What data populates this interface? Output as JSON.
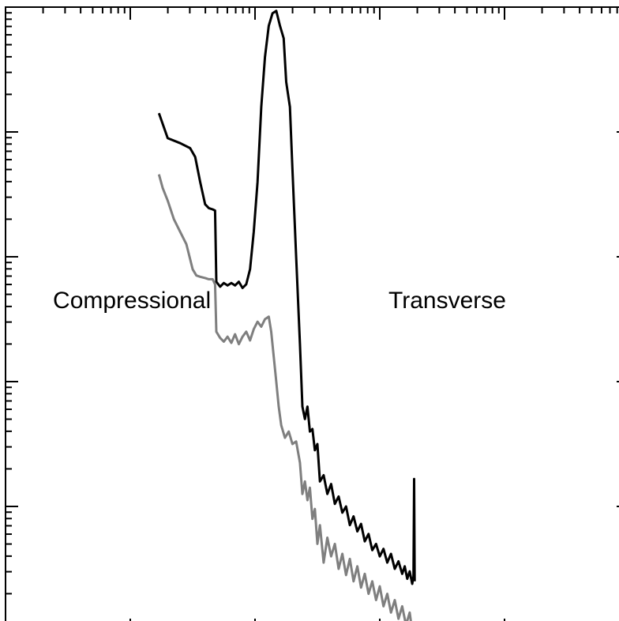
{
  "chart_data": {
    "type": "line",
    "title": "",
    "xlabel": "",
    "ylabel": "",
    "x_scale": "log",
    "y_scale": "log",
    "x_decades": 5,
    "y_decades": 5,
    "grid": false,
    "legend": "none",
    "annotations": [
      {
        "name": "annotation-compressional",
        "text": "Compressional",
        "x": -0.62,
        "y": 2.59
      },
      {
        "name": "annotation-transverse",
        "text": "Transverse",
        "x": 2.07,
        "y": 2.59
      }
    ],
    "series": [
      {
        "key": "transverse",
        "color": "#000000",
        "points": [
          [
            1.23,
            4.15
          ],
          [
            1.3,
            3.95
          ],
          [
            1.4,
            3.91
          ],
          [
            1.48,
            3.87
          ],
          [
            1.52,
            3.8
          ],
          [
            1.56,
            3.6
          ],
          [
            1.6,
            3.42
          ],
          [
            1.63,
            3.39
          ],
          [
            1.66,
            3.38
          ],
          [
            1.68,
            3.37
          ],
          [
            1.69,
            2.8
          ],
          [
            1.72,
            2.76
          ],
          [
            1.75,
            2.79
          ],
          [
            1.78,
            2.77
          ],
          [
            1.81,
            2.79
          ],
          [
            1.84,
            2.77
          ],
          [
            1.87,
            2.8
          ],
          [
            1.9,
            2.75
          ],
          [
            1.93,
            2.78
          ],
          [
            1.96,
            2.9
          ],
          [
            1.99,
            3.2
          ],
          [
            2.02,
            3.6
          ],
          [
            2.05,
            4.2
          ],
          [
            2.08,
            4.6
          ],
          [
            2.11,
            4.85
          ],
          [
            2.14,
            4.95
          ],
          [
            2.17,
            4.97
          ],
          [
            2.2,
            4.85
          ],
          [
            2.23,
            4.75
          ],
          [
            2.25,
            4.4
          ],
          [
            2.28,
            4.2
          ],
          [
            2.3,
            3.7
          ],
          [
            2.33,
            3.0
          ],
          [
            2.36,
            2.3
          ],
          [
            2.38,
            1.8
          ],
          [
            2.4,
            1.7
          ],
          [
            2.42,
            1.8
          ],
          [
            2.44,
            1.6
          ],
          [
            2.46,
            1.62
          ],
          [
            2.48,
            1.45
          ],
          [
            2.5,
            1.5
          ],
          [
            2.52,
            1.2
          ],
          [
            2.55,
            1.25
          ],
          [
            2.58,
            1.1
          ],
          [
            2.61,
            1.18
          ],
          [
            2.64,
            1.02
          ],
          [
            2.67,
            1.08
          ],
          [
            2.7,
            0.95
          ],
          [
            2.73,
            1.0
          ],
          [
            2.76,
            0.85
          ],
          [
            2.79,
            0.92
          ],
          [
            2.82,
            0.8
          ],
          [
            2.85,
            0.86
          ],
          [
            2.88,
            0.72
          ],
          [
            2.91,
            0.78
          ],
          [
            2.94,
            0.65
          ],
          [
            2.97,
            0.7
          ],
          [
            3.0,
            0.6
          ],
          [
            3.03,
            0.66
          ],
          [
            3.06,
            0.55
          ],
          [
            3.09,
            0.62
          ],
          [
            3.12,
            0.5
          ],
          [
            3.15,
            0.56
          ],
          [
            3.18,
            0.46
          ],
          [
            3.2,
            0.52
          ],
          [
            3.22,
            0.42
          ],
          [
            3.24,
            0.48
          ],
          [
            3.26,
            0.38
          ],
          [
            3.27,
            0.44
          ],
          [
            3.275,
            1.22
          ],
          [
            3.28,
            0.4
          ]
        ]
      },
      {
        "key": "compressional",
        "color": "#7f7f7f",
        "points": [
          [
            1.23,
            3.66
          ],
          [
            1.26,
            3.55
          ],
          [
            1.3,
            3.45
          ],
          [
            1.35,
            3.3
          ],
          [
            1.4,
            3.2
          ],
          [
            1.45,
            3.1
          ],
          [
            1.5,
            2.9
          ],
          [
            1.53,
            2.85
          ],
          [
            1.56,
            2.84
          ],
          [
            1.6,
            2.83
          ],
          [
            1.63,
            2.82
          ],
          [
            1.66,
            2.82
          ],
          [
            1.68,
            2.78
          ],
          [
            1.69,
            2.4
          ],
          [
            1.72,
            2.35
          ],
          [
            1.75,
            2.32
          ],
          [
            1.78,
            2.36
          ],
          [
            1.81,
            2.31
          ],
          [
            1.84,
            2.38
          ],
          [
            1.87,
            2.3
          ],
          [
            1.9,
            2.36
          ],
          [
            1.93,
            2.4
          ],
          [
            1.96,
            2.33
          ],
          [
            1.99,
            2.42
          ],
          [
            2.02,
            2.48
          ],
          [
            2.05,
            2.44
          ],
          [
            2.08,
            2.5
          ],
          [
            2.11,
            2.52
          ],
          [
            2.13,
            2.4
          ],
          [
            2.15,
            2.2
          ],
          [
            2.17,
            2.0
          ],
          [
            2.19,
            1.8
          ],
          [
            2.21,
            1.65
          ],
          [
            2.24,
            1.55
          ],
          [
            2.27,
            1.6
          ],
          [
            2.3,
            1.5
          ],
          [
            2.33,
            1.52
          ],
          [
            2.36,
            1.35
          ],
          [
            2.38,
            1.1
          ],
          [
            2.4,
            1.2
          ],
          [
            2.42,
            1.05
          ],
          [
            2.44,
            1.15
          ],
          [
            2.46,
            0.9
          ],
          [
            2.48,
            0.98
          ],
          [
            2.5,
            0.7
          ],
          [
            2.52,
            0.85
          ],
          [
            2.55,
            0.55
          ],
          [
            2.58,
            0.75
          ],
          [
            2.61,
            0.6
          ],
          [
            2.64,
            0.7
          ],
          [
            2.67,
            0.5
          ],
          [
            2.7,
            0.62
          ],
          [
            2.73,
            0.45
          ],
          [
            2.76,
            0.58
          ],
          [
            2.79,
            0.4
          ],
          [
            2.82,
            0.52
          ],
          [
            2.85,
            0.35
          ],
          [
            2.88,
            0.46
          ],
          [
            2.91,
            0.3
          ],
          [
            2.94,
            0.4
          ],
          [
            2.97,
            0.25
          ],
          [
            3.0,
            0.36
          ],
          [
            3.03,
            0.2
          ],
          [
            3.06,
            0.3
          ],
          [
            3.09,
            0.15
          ],
          [
            3.12,
            0.25
          ],
          [
            3.15,
            0.1
          ],
          [
            3.18,
            0.2
          ],
          [
            3.21,
            0.05
          ],
          [
            3.24,
            0.15
          ],
          [
            3.26,
            0.0
          ],
          [
            3.28,
            0.05
          ]
        ]
      }
    ]
  }
}
